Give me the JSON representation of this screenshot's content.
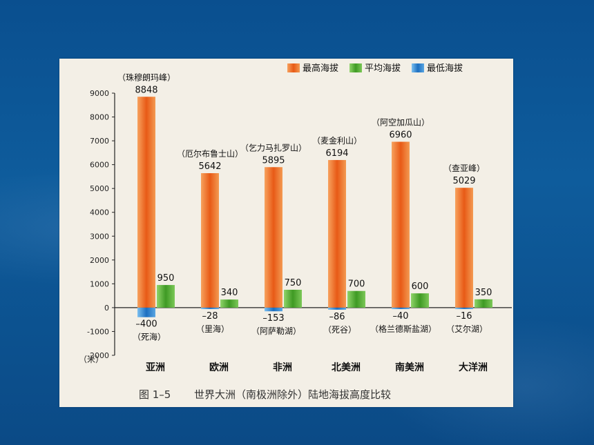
{
  "chart_data": {
    "type": "bar",
    "categories": [
      "亚洲",
      "欧洲",
      "非洲",
      "北美洲",
      "南美洲",
      "大洋洲"
    ],
    "series": [
      {
        "name": "最高海拔",
        "values": [
          8848,
          5642,
          5895,
          6194,
          6960,
          5029
        ],
        "color": "#f0752a"
      },
      {
        "name": "平均海拔",
        "values": [
          950,
          340,
          750,
          700,
          600,
          350
        ],
        "color": "#5fb53a"
      },
      {
        "name": "最低海拔",
        "values": [
          -400,
          -28,
          -153,
          -86,
          -40,
          -16
        ],
        "color": "#3a8fd6"
      }
    ],
    "peak_names": [
      "（珠穆朗玛峰）",
      "（厄尔布鲁士山）",
      "（乞力马扎罗山）",
      "（麦金利山）",
      "（阿空加瓜山）",
      "（查亚峰）"
    ],
    "low_names": [
      "（死海）",
      "（里海）",
      "（阿萨勒湖）",
      "（死谷）",
      "（格兰德斯盐湖）",
      "（艾尔湖）"
    ],
    "ylim": [
      -2000,
      9000
    ],
    "yticks": [
      -2000,
      -1000,
      0,
      1000,
      2000,
      3000,
      4000,
      5000,
      6000,
      7000,
      8000,
      9000
    ],
    "unit_label": "（米）",
    "caption_prefix": "图 1–5",
    "caption": "世界大洲（南极洲除外）陆地海拔高度比较",
    "legend": [
      "最高海拔",
      "平均海拔",
      "最低海拔"
    ],
    "legend_position": "top-right"
  }
}
